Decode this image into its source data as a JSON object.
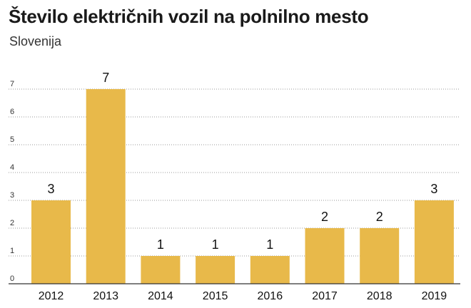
{
  "chart_data": {
    "type": "bar",
    "title": "Število električnih vozil na polnilno mesto",
    "subtitle": "Slovenija",
    "categories": [
      "2012",
      "2013",
      "2014",
      "2015",
      "2016",
      "2017",
      "2018",
      "2019"
    ],
    "values": [
      3,
      7,
      1,
      1,
      1,
      2,
      2,
      3
    ],
    "xlabel": "",
    "ylabel": "",
    "ylim": [
      0,
      7.5
    ],
    "yticks": [
      0,
      1,
      2,
      3,
      4,
      5,
      6,
      7
    ],
    "grid": true,
    "data_labels": true,
    "bar_color": "#e8b94a"
  }
}
